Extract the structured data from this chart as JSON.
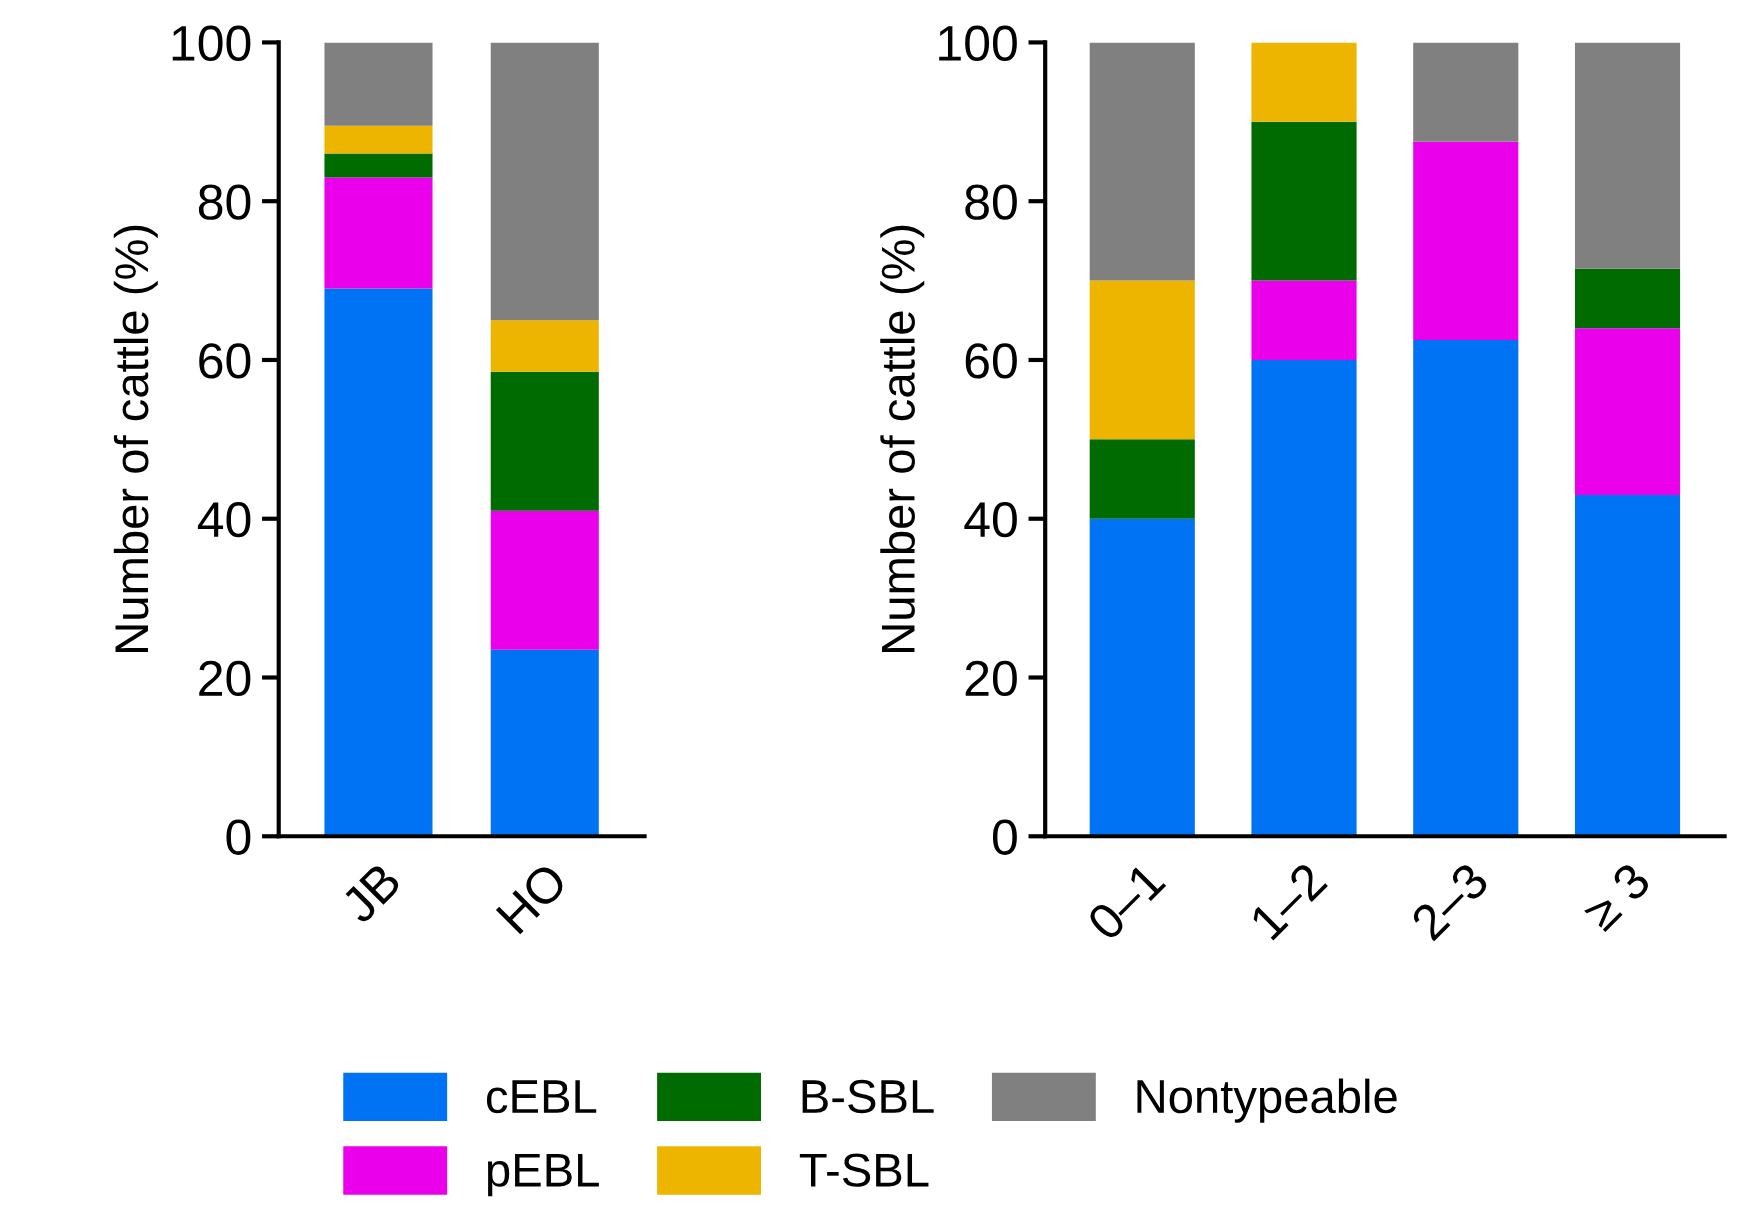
{
  "chart_data": [
    {
      "type": "bar",
      "stacked": true,
      "categories": [
        "JB",
        "HO"
      ],
      "ylabel": "Number of cattle (%)",
      "ylim": [
        0,
        100
      ],
      "yticks": [
        0,
        20,
        40,
        60,
        80,
        100
      ],
      "grid": false,
      "legend": "bottom",
      "series": [
        {
          "name": "cEBL",
          "color": "#0073f5",
          "values": [
            69,
            23.5
          ]
        },
        {
          "name": "pEBL",
          "color": "#eb00eb",
          "values": [
            14,
            17.5
          ]
        },
        {
          "name": "B-SBL",
          "color": "#006b00",
          "values": [
            3,
            17.5
          ]
        },
        {
          "name": "T-SBL",
          "color": "#edb500",
          "values": [
            3.5,
            6.5
          ]
        },
        {
          "name": "Nontypeable",
          "color": "#808080",
          "values": [
            10.5,
            35
          ]
        }
      ]
    },
    {
      "type": "bar",
      "stacked": true,
      "categories": [
        "0–1",
        "1–2",
        "2–3",
        "≥ 3"
      ],
      "ylabel": "Number of cattle (%)",
      "ylim": [
        0,
        100
      ],
      "yticks": [
        0,
        20,
        40,
        60,
        80,
        100
      ],
      "grid": false,
      "series": [
        {
          "color": "#0073f5",
          "values": [
            40,
            60,
            62.5,
            43
          ]
        },
        {
          "color": "#eb00eb",
          "values": [
            0,
            10,
            25,
            21
          ]
        },
        {
          "color": "#006b00",
          "values": [
            10,
            20,
            0,
            7.5
          ]
        },
        {
          "color": "#edb500",
          "values": [
            20,
            10,
            0,
            0
          ]
        },
        {
          "color": "#808080",
          "values": [
            30,
            0,
            12.5,
            28.5
          ]
        }
      ]
    }
  ]
}
